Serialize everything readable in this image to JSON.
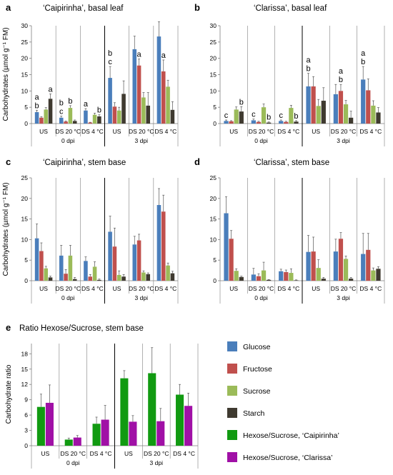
{
  "colors": {
    "glucose": "#4a7ebb",
    "fructose": "#c0504d",
    "sucrose": "#9bbb59",
    "starch": "#3f3a30",
    "hex_caip": "#119a11",
    "hex_clar": "#a010a6"
  },
  "legend": [
    {
      "key": "glucose",
      "label": "Glucose"
    },
    {
      "key": "fructose",
      "label": "Fructose"
    },
    {
      "key": "sucrose",
      "label": "Sucrose"
    },
    {
      "key": "starch",
      "label": "Starch"
    },
    {
      "key": "hex_caip",
      "label": "Hexose/Sucrose, ‘Caipirinha’"
    },
    {
      "key": "hex_clar",
      "label": "Hexose/Sucrose, ‘Clarissa’"
    }
  ],
  "chart_data": [
    {
      "id": "a",
      "type": "bar",
      "panel_label": "a",
      "title": "‘Caipirinha’, basal leaf",
      "ylabel": "Carbohydrates (µmol g⁻¹ FM)",
      "ylim": [
        0,
        30
      ],
      "yticks": [
        0,
        5,
        10,
        15,
        20,
        25,
        30
      ],
      "categories": [
        "US",
        "DS 20 °C",
        "DS 4 °C",
        "US",
        "DS 20 °C",
        "DS 4 °C"
      ],
      "groups": [
        {
          "label": "0 dpi"
        },
        {
          "label": "3 dpi"
        }
      ],
      "series": [
        {
          "name": "Glucose",
          "key": "glucose",
          "values": [
            3.5,
            1.8,
            4.0,
            14.0,
            22.8,
            26.7
          ],
          "errors": [
            0.6,
            0.5,
            0.6,
            3.5,
            4.0,
            4.5
          ]
        },
        {
          "name": "Fructose",
          "key": "fructose",
          "values": [
            1.8,
            0.6,
            0.3,
            5.2,
            17.8,
            16.0
          ],
          "errors": [
            0.3,
            0.2,
            0.1,
            1.2,
            2.0,
            3.5
          ]
        },
        {
          "name": "Sucrose",
          "key": "sucrose",
          "values": [
            4.3,
            4.8,
            2.7,
            4.0,
            8.0,
            11.3
          ],
          "errors": [
            0.6,
            0.7,
            0.5,
            1.0,
            1.5,
            2.0
          ]
        },
        {
          "name": "Starch",
          "key": "starch",
          "values": [
            7.6,
            0.8,
            2.2,
            9.1,
            5.5,
            4.2
          ],
          "errors": [
            1.5,
            0.3,
            0.5,
            4.0,
            4.0,
            2.5
          ]
        }
      ],
      "annotations": [
        {
          "text": "a",
          "cat": 0,
          "series": 0,
          "line": 0
        },
        {
          "text": "b",
          "cat": 0,
          "series": 0,
          "line": 1
        },
        {
          "text": "a",
          "cat": 0,
          "series": 3,
          "line": 0
        },
        {
          "text": "b",
          "cat": 1,
          "series": 0,
          "line": 0
        },
        {
          "text": "c",
          "cat": 1,
          "series": 0,
          "line": 1
        },
        {
          "text": "b",
          "cat": 1,
          "series": 2,
          "line": 0
        },
        {
          "text": "a",
          "cat": 2,
          "series": 0,
          "line": 0
        },
        {
          "text": "b",
          "cat": 2,
          "series": 3,
          "line": 0
        },
        {
          "text": "b",
          "cat": 3,
          "series": 0,
          "line": 0
        },
        {
          "text": "c",
          "cat": 3,
          "series": 0,
          "line": 1
        },
        {
          "text": "a",
          "cat": 4,
          "series": 1,
          "line": 0
        },
        {
          "text": "a",
          "cat": 5,
          "series": 1,
          "line": 0
        }
      ]
    },
    {
      "id": "b",
      "type": "bar",
      "panel_label": "b",
      "title": "‘Clarissa’, basal leaf",
      "ylabel": "",
      "ylim": [
        0,
        30
      ],
      "yticks": [
        0,
        5,
        10,
        15,
        20,
        25,
        30
      ],
      "categories": [
        "US",
        "DS 20 °C",
        "DS 4 °C",
        "US",
        "DS 20 °C",
        "DS 4 °C"
      ],
      "groups": [
        {
          "label": "0 dpi"
        },
        {
          "label": "3 dpi"
        }
      ],
      "series": [
        {
          "name": "Glucose",
          "key": "glucose",
          "values": [
            0.8,
            1.0,
            0.8,
            11.4,
            9.0,
            13.5
          ],
          "errors": [
            0.3,
            0.4,
            0.3,
            4.0,
            3.0,
            4.0
          ]
        },
        {
          "name": "Fructose",
          "key": "fructose",
          "values": [
            0.7,
            0.5,
            0.5,
            11.4,
            10.0,
            10.2
          ],
          "errors": [
            0.2,
            0.2,
            0.2,
            3.0,
            2.0,
            3.5
          ]
        },
        {
          "name": "Sucrose",
          "key": "sucrose",
          "values": [
            4.3,
            5.0,
            4.8,
            5.4,
            5.9,
            5.5
          ],
          "errors": [
            0.8,
            1.0,
            0.8,
            2.0,
            1.2,
            1.5
          ]
        },
        {
          "name": "Starch",
          "key": "starch",
          "values": [
            3.7,
            0.3,
            0.6,
            7.0,
            1.8,
            3.4
          ],
          "errors": [
            1.5,
            0.2,
            0.3,
            4.0,
            2.0,
            1.5
          ]
        }
      ],
      "annotations": [
        {
          "text": "c",
          "cat": 0,
          "series": 0,
          "line": 0
        },
        {
          "text": "b",
          "cat": 0,
          "series": 3,
          "line": 0
        },
        {
          "text": "c",
          "cat": 1,
          "series": 0,
          "line": 0
        },
        {
          "text": "b",
          "cat": 1,
          "series": 3,
          "line": 0
        },
        {
          "text": "c",
          "cat": 2,
          "series": 0,
          "line": 0
        },
        {
          "text": "b",
          "cat": 2,
          "series": 3,
          "line": 0
        },
        {
          "text": "a",
          "cat": 3,
          "series": 0,
          "line": 0
        },
        {
          "text": "b",
          "cat": 3,
          "series": 0,
          "line": 1
        },
        {
          "text": "a",
          "cat": 4,
          "series": 1,
          "line": 0
        },
        {
          "text": "b",
          "cat": 4,
          "series": 1,
          "line": 1
        },
        {
          "text": "a",
          "cat": 5,
          "series": 0,
          "line": 0
        },
        {
          "text": "b",
          "cat": 5,
          "series": 0,
          "line": 1
        }
      ]
    },
    {
      "id": "c",
      "type": "bar",
      "panel_label": "c",
      "title": "‘Caipirinha’, stem base",
      "ylabel": "Carbohydrates (µmol g⁻¹ FM)",
      "ylim": [
        0,
        25
      ],
      "yticks": [
        0,
        5,
        10,
        15,
        20,
        25
      ],
      "categories": [
        "US",
        "DS 20 °C",
        "DS 4 °C",
        "US",
        "DS 20 °C",
        "DS 4 °C"
      ],
      "groups": [
        {
          "label": "0 dpi"
        },
        {
          "label": "3 dpi"
        }
      ],
      "series": [
        {
          "name": "Glucose",
          "key": "glucose",
          "values": [
            10.3,
            6.1,
            4.8,
            11.9,
            8.8,
            18.4
          ],
          "errors": [
            3.5,
            2.5,
            1.0,
            3.8,
            2.0,
            4.0
          ]
        },
        {
          "name": "Fructose",
          "key": "fructose",
          "values": [
            7.2,
            1.7,
            1.0,
            8.3,
            9.8,
            16.8
          ],
          "errors": [
            2.0,
            1.0,
            0.5,
            4.5,
            1.5,
            4.0
          ]
        },
        {
          "name": "Sucrose",
          "key": "sucrose",
          "values": [
            3.0,
            6.1,
            3.4,
            1.4,
            2.0,
            3.7
          ],
          "errors": [
            0.5,
            2.5,
            1.2,
            1.0,
            0.4,
            0.6
          ]
        },
        {
          "name": "Starch",
          "key": "starch",
          "values": [
            0.8,
            0.4,
            0.2,
            1.0,
            1.6,
            1.8
          ],
          "errors": [
            0.3,
            0.4,
            0.2,
            0.5,
            0.3,
            0.5
          ]
        }
      ],
      "annotations": []
    },
    {
      "id": "d",
      "type": "bar",
      "panel_label": "d",
      "title": "‘Clarissa’, stem base",
      "ylabel": "",
      "ylim": [
        0,
        25
      ],
      "yticks": [
        0,
        5,
        10,
        15,
        20,
        25
      ],
      "categories": [
        "US",
        "DS 20 °C",
        "DS 4 °C",
        "US",
        "DS 20 °C",
        "DS 4 °C"
      ],
      "groups": [
        {
          "label": "0 dpi"
        },
        {
          "label": "3 dpi"
        }
      ],
      "series": [
        {
          "name": "Glucose",
          "key": "glucose",
          "values": [
            16.4,
            1.5,
            2.3,
            7.0,
            7.1,
            6.5
          ],
          "errors": [
            4.0,
            1.5,
            0.5,
            4.0,
            3.0,
            5.0
          ]
        },
        {
          "name": "Fructose",
          "key": "fructose",
          "values": [
            10.2,
            1.1,
            2.1,
            7.1,
            10.2,
            7.5
          ],
          "errors": [
            2.0,
            0.6,
            0.5,
            3.5,
            1.5,
            4.0
          ]
        },
        {
          "name": "Sucrose",
          "key": "sucrose",
          "values": [
            2.4,
            2.5,
            1.9,
            3.1,
            5.3,
            2.5
          ],
          "errors": [
            0.5,
            2.0,
            1.0,
            2.0,
            0.7,
            0.6
          ]
        },
        {
          "name": "Starch",
          "key": "starch",
          "values": [
            0.9,
            0.2,
            0.1,
            0.5,
            0.5,
            2.9
          ],
          "errors": [
            0.2,
            0.1,
            0.1,
            0.3,
            0.3,
            0.5
          ]
        }
      ],
      "annotations": []
    },
    {
      "id": "e",
      "type": "bar",
      "panel_label": "e",
      "title": "Ratio Hexose/Sucrose, stem base",
      "ylabel": "Carbohydrate ratio",
      "ylim": [
        0,
        20
      ],
      "yticks": [
        0,
        3,
        6,
        9,
        12,
        15,
        18
      ],
      "categories": [
        "US",
        "DS 20 °C",
        "DS 4 °C",
        "US",
        "DS 20 °C",
        "DS 4 °C"
      ],
      "groups": [
        {
          "label": "0 dpi"
        },
        {
          "label": "3 dpi"
        }
      ],
      "series": [
        {
          "name": "Hexose/Sucrose, ‘Caipirinha’",
          "key": "hex_caip",
          "values": [
            7.6,
            1.2,
            4.3,
            13.2,
            14.2,
            10.0
          ],
          "errors": [
            2.5,
            0.3,
            1.3,
            1.5,
            5.0,
            2.0
          ]
        },
        {
          "name": "Hexose/Sucrose, ‘Clarissa’",
          "key": "hex_clar",
          "values": [
            8.4,
            1.6,
            5.1,
            4.7,
            4.8,
            7.8
          ],
          "errors": [
            3.5,
            0.4,
            2.8,
            1.2,
            2.5,
            2.5
          ]
        }
      ],
      "annotations": []
    }
  ]
}
